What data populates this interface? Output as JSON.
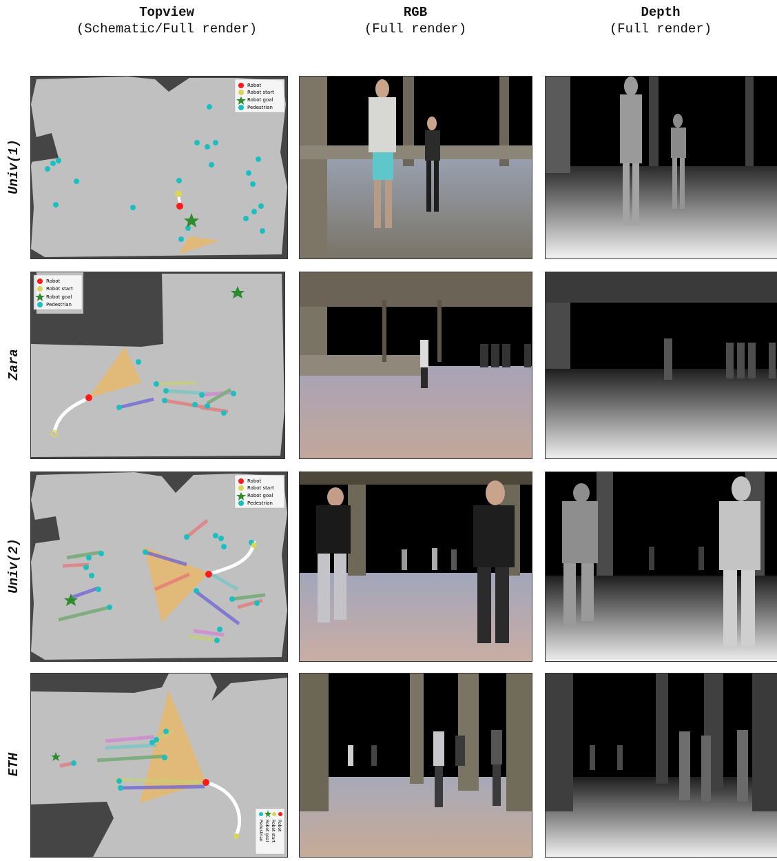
{
  "columns": [
    {
      "title": "Topview",
      "subtitle": "(Schematic/Full render)"
    },
    {
      "title": "RGB",
      "subtitle": "(Full render)"
    },
    {
      "title": "Depth",
      "subtitle": "(Full render)"
    }
  ],
  "rows": [
    {
      "label": "Univ(1)"
    },
    {
      "label": "Zara"
    },
    {
      "label": "Univ(2)"
    },
    {
      "label": "ETH"
    }
  ],
  "legend": {
    "robot": "Robot",
    "robot_start": "Robot start",
    "robot_goal": "Robot goal",
    "pedestrian": "Pedestrian"
  },
  "colors": {
    "floor": "#c0c0c0",
    "wall": "#454545",
    "robot": "#ff1a1a",
    "robot_start": "#d6d65a",
    "robot_goal": "#2e8b2e",
    "pedestrian": "#1cbfbf",
    "fov": "#f0b75a"
  }
}
